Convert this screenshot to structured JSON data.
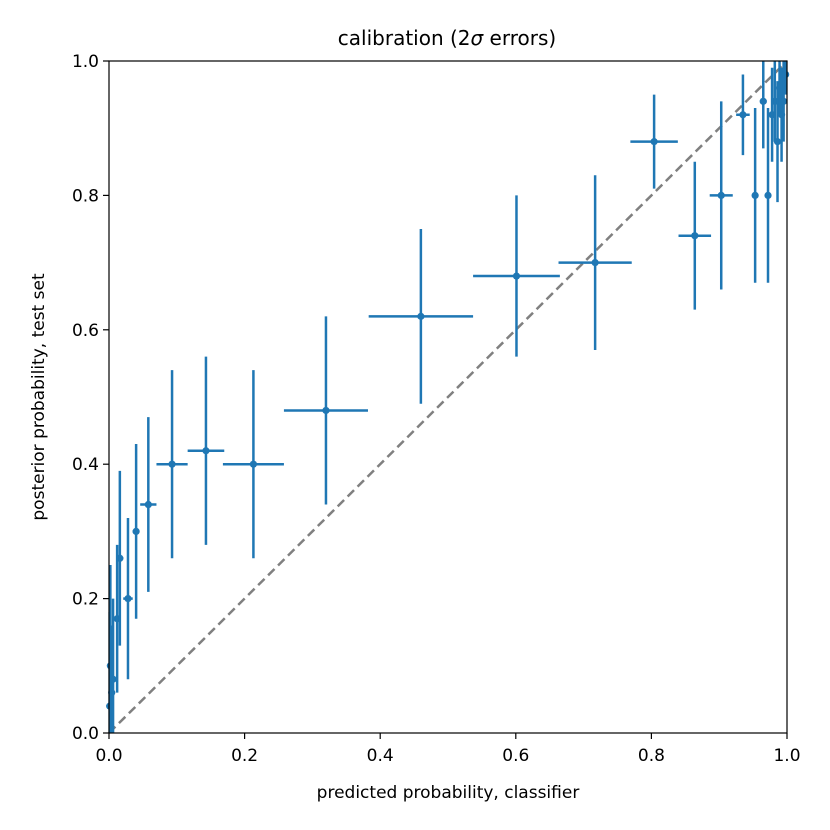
{
  "chart_data": {
    "type": "scatter",
    "title_prefix": "calibration (2",
    "title_sigma": "σ",
    "title_suffix": " errors)",
    "xlabel": "predicted probability, classifier",
    "ylabel": "posterior probability, test set",
    "xlim": [
      0,
      1
    ],
    "ylim": [
      0,
      1
    ],
    "x_ticks": [
      "0.0",
      "0.2",
      "0.4",
      "0.6",
      "0.8",
      "1.0"
    ],
    "y_ticks": [
      "0.0",
      "0.2",
      "0.4",
      "0.6",
      "0.8",
      "1.0"
    ],
    "grid": false,
    "colors": {
      "series": "#1f77b4",
      "reference": "#808080"
    },
    "reference_line": {
      "x": [
        0,
        1
      ],
      "y": [
        0,
        1
      ],
      "style": "dashed"
    },
    "points": [
      {
        "x": 0.001,
        "y": 0.04,
        "xerr": 0.001,
        "yerr": 0.14
      },
      {
        "x": 0.002,
        "y": 0.1,
        "xerr": 0.001,
        "yerr": 0.15
      },
      {
        "x": 0.004,
        "y": 0.06,
        "xerr": 0.002,
        "yerr": 0.1
      },
      {
        "x": 0.006,
        "y": 0.08,
        "xerr": 0.002,
        "yerr": 0.12
      },
      {
        "x": 0.012,
        "y": 0.17,
        "xerr": 0.004,
        "yerr": 0.11
      },
      {
        "x": 0.016,
        "y": 0.26,
        "xerr": 0.005,
        "yerr": 0.13
      },
      {
        "x": 0.028,
        "y": 0.2,
        "xerr": 0.007,
        "yerr": 0.12
      },
      {
        "x": 0.04,
        "y": 0.3,
        "xerr": 0.005,
        "yerr": 0.13
      },
      {
        "x": 0.058,
        "y": 0.34,
        "xerr": 0.012,
        "yerr": 0.13
      },
      {
        "x": 0.093,
        "y": 0.4,
        "xerr": 0.023,
        "yerr": 0.14
      },
      {
        "x": 0.143,
        "y": 0.42,
        "xerr": 0.027,
        "yerr": 0.14
      },
      {
        "x": 0.213,
        "y": 0.4,
        "xerr": 0.045,
        "yerr": 0.14
      },
      {
        "x": 0.32,
        "y": 0.48,
        "xerr": 0.062,
        "yerr": 0.14
      },
      {
        "x": 0.46,
        "y": 0.62,
        "xerr": 0.077,
        "yerr": 0.13
      },
      {
        "x": 0.601,
        "y": 0.68,
        "xerr": 0.064,
        "yerr": 0.12
      },
      {
        "x": 0.717,
        "y": 0.7,
        "xerr": 0.054,
        "yerr": 0.13
      },
      {
        "x": 0.804,
        "y": 0.88,
        "xerr": 0.035,
        "yerr": 0.07
      },
      {
        "x": 0.864,
        "y": 0.74,
        "xerr": 0.024,
        "yerr": 0.11
      },
      {
        "x": 0.903,
        "y": 0.8,
        "xerr": 0.017,
        "yerr": 0.14
      },
      {
        "x": 0.935,
        "y": 0.92,
        "xerr": 0.01,
        "yerr": 0.06
      },
      {
        "x": 0.953,
        "y": 0.8,
        "xerr": 0.004,
        "yerr": 0.13
      },
      {
        "x": 0.965,
        "y": 0.94,
        "xerr": 0.005,
        "yerr": 0.07
      },
      {
        "x": 0.972,
        "y": 0.8,
        "xerr": 0.004,
        "yerr": 0.13
      },
      {
        "x": 0.978,
        "y": 0.92,
        "xerr": 0.003,
        "yerr": 0.07
      },
      {
        "x": 0.982,
        "y": 0.94,
        "xerr": 0.003,
        "yerr": 0.06
      },
      {
        "x": 0.986,
        "y": 0.88,
        "xerr": 0.003,
        "yerr": 0.09
      },
      {
        "x": 0.989,
        "y": 0.96,
        "xerr": 0.002,
        "yerr": 0.04
      },
      {
        "x": 0.992,
        "y": 0.92,
        "xerr": 0.002,
        "yerr": 0.07
      },
      {
        "x": 0.995,
        "y": 0.94,
        "xerr": 0.002,
        "yerr": 0.06
      },
      {
        "x": 0.998,
        "y": 0.98,
        "xerr": 0.001,
        "yerr": 0.03
      }
    ]
  }
}
